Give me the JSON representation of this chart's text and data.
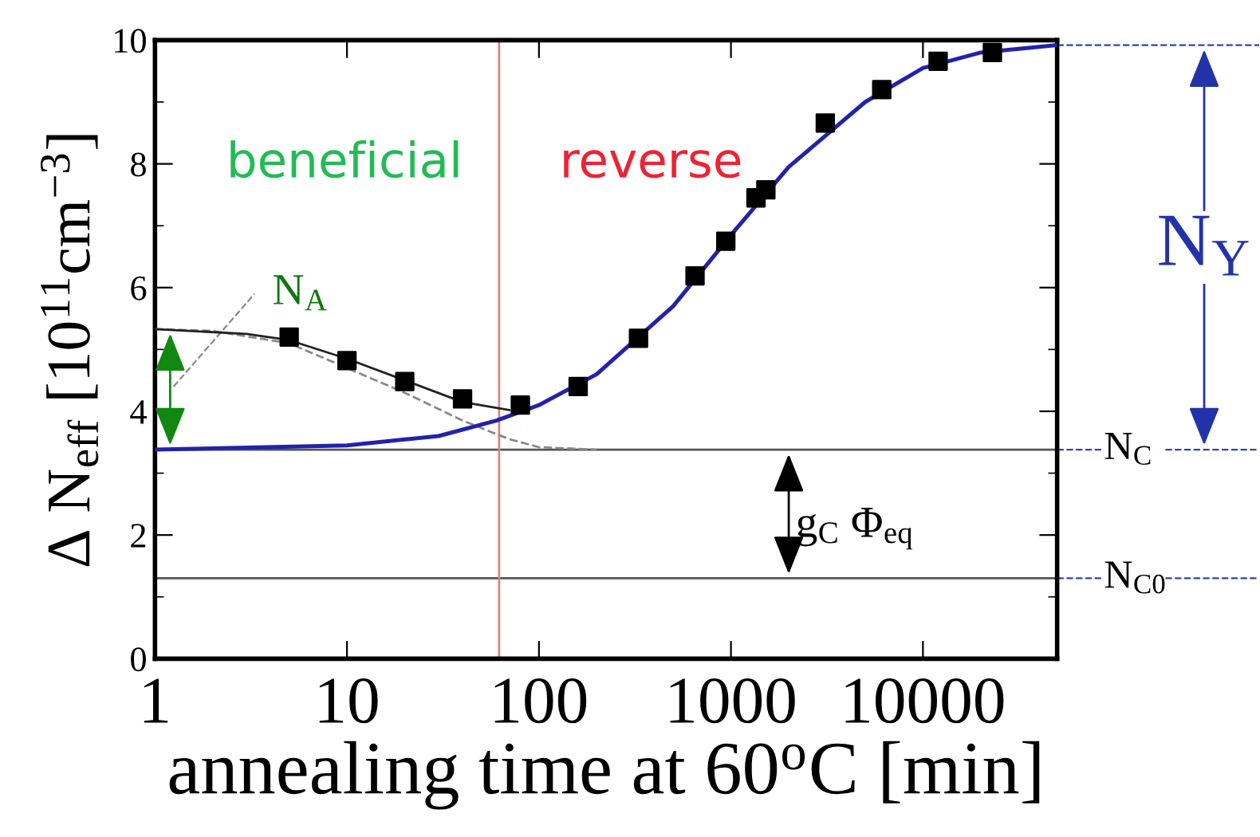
{
  "chart_data": {
    "type": "scatter",
    "xlabel": "annealing time at 60$^{o}$C [min]",
    "ylabel": "Δ N$_{eff}$ [10$^{11}$cm$^{−3}$]",
    "log": "x",
    "xlim": [
      1,
      50000
    ],
    "xticks": [
      1,
      10,
      100,
      1000,
      10000
    ],
    "ylim": [
      0,
      10
    ],
    "yticks": [
      0,
      2,
      4,
      6,
      8,
      10
    ],
    "grid": false,
    "legend": false,
    "series": [
      {
        "type": "line",
        "color": "#888888",
        "line_style": "dashed",
        "marker": "none",
        "x": [
          1,
          2,
          5,
          10,
          20,
          40,
          70,
          100,
          200
        ],
        "values": [
          5.33,
          5.3,
          5.1,
          4.7,
          4.3,
          3.85,
          3.55,
          3.42,
          3.38
        ]
      },
      {
        "type": "line",
        "color": "#222222",
        "line_style": "solid",
        "marker": "none",
        "x": [
          1,
          3,
          5,
          10,
          20,
          40,
          70
        ],
        "values": [
          5.33,
          5.25,
          5.15,
          4.85,
          4.5,
          4.15,
          4.02
        ]
      },
      {
        "type": "line",
        "color": "#2222aa",
        "line_style": "solid",
        "marker": "none",
        "x": [
          1,
          10,
          30,
          60,
          100,
          200,
          500,
          1000,
          2000,
          5000,
          10000,
          20000,
          50000
        ],
        "values": [
          3.38,
          3.45,
          3.6,
          3.85,
          4.1,
          4.6,
          5.7,
          6.85,
          7.95,
          9.0,
          9.55,
          9.8,
          9.92
        ]
      },
      {
        "color": "#000000",
        "marker": "square",
        "x": [
          5,
          10,
          20,
          40,
          80,
          160,
          330,
          650,
          940,
          1350,
          1520,
          3100,
          6100,
          12000,
          23000
        ],
        "values": [
          5.2,
          4.82,
          4.48,
          4.2,
          4.1,
          4.4,
          5.18,
          6.19,
          6.75,
          7.45,
          7.58,
          8.66,
          9.2,
          9.66,
          9.8
        ]
      }
    ],
    "ref_lines": [
      {
        "axis": "y",
        "value": 3.38,
        "label": "N$_{C}$",
        "color": "#555555"
      },
      {
        "axis": "y",
        "value": 1.3,
        "label": "N$_{C0}$",
        "color": "#555555"
      },
      {
        "axis": "x",
        "value": 62,
        "color": "#e08080"
      }
    ],
    "annotations": [
      "beneficial",
      "reverse",
      "N$_{A}$",
      "g$_{C}$ Φ$_{eq}$",
      "N$_{Y}$"
    ]
  }
}
